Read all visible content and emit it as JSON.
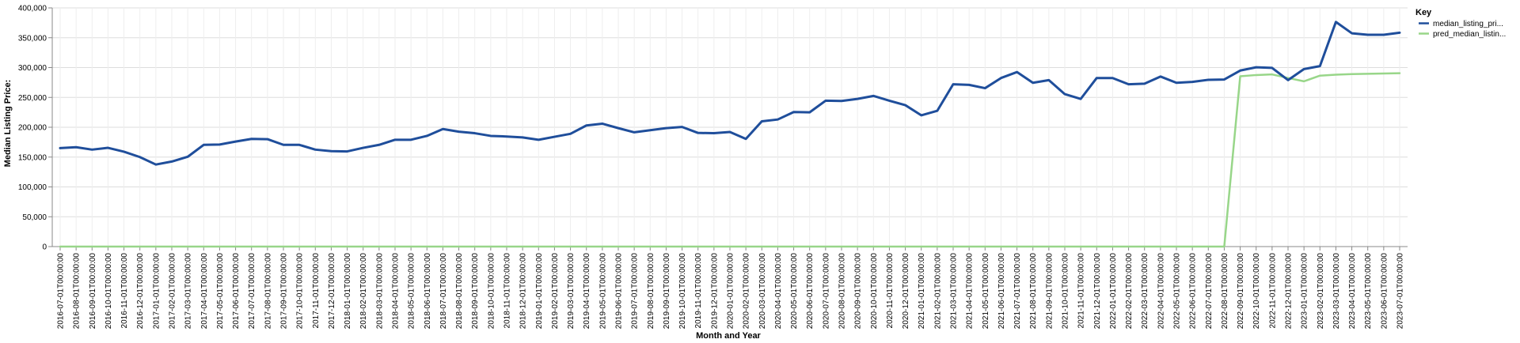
{
  "chart_data": {
    "type": "line",
    "title": "",
    "xlabel": "Month and Year",
    "ylabel": "Median Listing Price:",
    "ylim": [
      0,
      400000
    ],
    "yticks": [
      0,
      50000,
      100000,
      150000,
      200000,
      250000,
      300000,
      350000,
      400000
    ],
    "ytick_labels": [
      "0",
      "50,000",
      "100,000",
      "150,000",
      "200,000",
      "250,000",
      "300,000",
      "350,000",
      "400,000"
    ],
    "grid": true,
    "legend_position": "right",
    "legend_title": "Key",
    "x": [
      "2016-07-01T00:00:00",
      "2016-08-01T00:00:00",
      "2016-09-01T00:00:00",
      "2016-10-01T00:00:00",
      "2016-11-01T00:00:00",
      "2016-12-01T00:00:00",
      "2017-01-01T00:00:00",
      "2017-02-01T00:00:00",
      "2017-03-01T00:00:00",
      "2017-04-01T00:00:00",
      "2017-05-01T00:00:00",
      "2017-06-01T00:00:00",
      "2017-07-01T00:00:00",
      "2017-08-01T00:00:00",
      "2017-09-01T00:00:00",
      "2017-10-01T00:00:00",
      "2017-11-01T00:00:00",
      "2017-12-01T00:00:00",
      "2018-01-01T00:00:00",
      "2018-02-01T00:00:00",
      "2018-03-01T00:00:00",
      "2018-04-01T00:00:00",
      "2018-05-01T00:00:00",
      "2018-06-01T00:00:00",
      "2018-07-01T00:00:00",
      "2018-08-01T00:00:00",
      "2018-09-01T00:00:00",
      "2018-10-01T00:00:00",
      "2018-11-01T00:00:00",
      "2018-12-01T00:00:00",
      "2019-01-01T00:00:00",
      "2019-02-01T00:00:00",
      "2019-03-01T00:00:00",
      "2019-04-01T00:00:00",
      "2019-05-01T00:00:00",
      "2019-06-01T00:00:00",
      "2019-07-01T00:00:00",
      "2019-08-01T00:00:00",
      "2019-09-01T00:00:00",
      "2019-10-01T00:00:00",
      "2019-11-01T00:00:00",
      "2019-12-01T00:00:00",
      "2020-01-01T00:00:00",
      "2020-02-01T00:00:00",
      "2020-03-01T00:00:00",
      "2020-04-01T00:00:00",
      "2020-05-01T00:00:00",
      "2020-06-01T00:00:00",
      "2020-07-01T00:00:00",
      "2020-08-01T00:00:00",
      "2020-09-01T00:00:00",
      "2020-10-01T00:00:00",
      "2020-11-01T00:00:00",
      "2020-12-01T00:00:00",
      "2021-01-01T00:00:00",
      "2021-02-01T00:00:00",
      "2021-03-01T00:00:00",
      "2021-04-01T00:00:00",
      "2021-05-01T00:00:00",
      "2021-06-01T00:00:00",
      "2021-07-01T00:00:00",
      "2021-08-01T00:00:00",
      "2021-09-01T00:00:00",
      "2021-10-01T00:00:00",
      "2021-11-01T00:00:00",
      "2021-12-01T00:00:00",
      "2022-01-01T00:00:00",
      "2022-02-01T00:00:00",
      "2022-03-01T00:00:00",
      "2022-04-01T00:00:00",
      "2022-05-01T00:00:00",
      "2022-06-01T00:00:00",
      "2022-07-01T00:00:00",
      "2022-08-01T00:00:00",
      "2022-09-01T00:00:00",
      "2022-10-01T00:00:00",
      "2022-11-01T00:00:00",
      "2022-12-01T00:00:00",
      "2023-01-01T00:00:00",
      "2023-02-01T00:00:00",
      "2023-03-01T00:00:00",
      "2023-04-01T00:00:00",
      "2023-05-01T00:00:00",
      "2023-06-01T00:00:00",
      "2023-07-01T00:00:00"
    ],
    "series": [
      {
        "name": "median_listing_pri...",
        "color": "#1f4e9b",
        "values": [
          165000,
          166500,
          162500,
          165500,
          159000,
          150000,
          137500,
          142500,
          150500,
          170500,
          171000,
          176000,
          180500,
          180000,
          170500,
          170500,
          162500,
          160000,
          159500,
          165500,
          170500,
          179000,
          179000,
          185500,
          197000,
          192500,
          190000,
          185500,
          184500,
          183000,
          179000,
          184000,
          189000,
          203000,
          206000,
          198500,
          191500,
          195000,
          198500,
          200500,
          190500,
          190000,
          192000,
          180500,
          210000,
          213000,
          225500,
          225000,
          244500,
          244000,
          247500,
          252500,
          244500,
          237000,
          220000,
          227500,
          272000,
          271000,
          265500,
          282500,
          292500,
          274500,
          279000,
          255500,
          247500,
          282500,
          282500,
          272000,
          273000,
          285000,
          274500,
          276000,
          279500,
          280000,
          295000,
          300500,
          299500,
          279000,
          297500,
          302500,
          376500,
          357500,
          355000,
          355000,
          358500
        ]
      },
      {
        "name": "pred_median_listin...",
        "color": "#98d689",
        "values": [
          0,
          0,
          0,
          0,
          0,
          0,
          0,
          0,
          0,
          0,
          0,
          0,
          0,
          0,
          0,
          0,
          0,
          0,
          0,
          0,
          0,
          0,
          0,
          0,
          0,
          0,
          0,
          0,
          0,
          0,
          0,
          0,
          0,
          0,
          0,
          0,
          0,
          0,
          0,
          0,
          0,
          0,
          0,
          0,
          0,
          0,
          0,
          0,
          0,
          0,
          0,
          0,
          0,
          0,
          0,
          0,
          0,
          0,
          0,
          0,
          0,
          0,
          0,
          0,
          0,
          0,
          0,
          0,
          0,
          0,
          0,
          0,
          0,
          0,
          285500,
          287500,
          288500,
          282500,
          277000,
          286500,
          288000,
          289000,
          289500,
          290000,
          290500
        ]
      }
    ]
  }
}
